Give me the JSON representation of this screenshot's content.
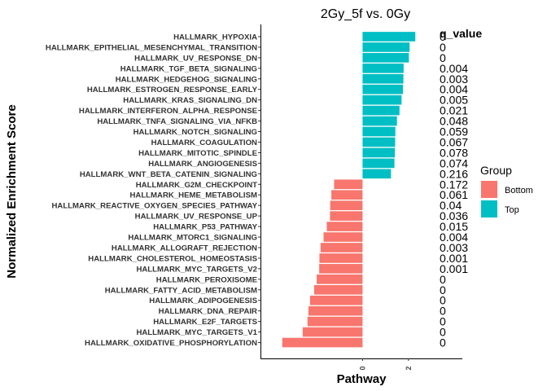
{
  "chart_data": {
    "type": "bar",
    "orientation": "horizontal",
    "title": "2Gy_5f vs. 0Gy",
    "xlabel": "Pathway",
    "ylabel": "Normalized Enrichment Score",
    "xlim": [
      -4.45,
      4.35
    ],
    "x_ticks": [
      0,
      2
    ],
    "x_tick_rotation": -90,
    "grid": false,
    "q_value_header": "q_value",
    "legend": {
      "title": "Group",
      "position": "right",
      "entries": [
        {
          "label": "Bottom",
          "color": "#F8766D"
        },
        {
          "label": "Top",
          "color": "#00BFC4"
        }
      ]
    },
    "colors": {
      "Top": "#00BFC4",
      "Bottom": "#F8766D"
    },
    "categories": [
      "HALLMARK_HYPOXIA",
      "HALLMARK_EPITHELIAL_MESENCHYMAL_TRANSITION",
      "HALLMARK_UV_RESPONSE_DN",
      "HALLMARK_TGF_BETA_SIGNALING",
      "HALLMARK_HEDGEHOG_SIGNALING",
      "HALLMARK_ESTROGEN_RESPONSE_EARLY",
      "HALLMARK_KRAS_SIGNALING_DN",
      "HALLMARK_INTERFERON_ALPHA_RESPONSE",
      "HALLMARK_TNFA_SIGNALING_VIA_NFKB",
      "HALLMARK_NOTCH_SIGNALING",
      "HALLMARK_COAGULATION",
      "HALLMARK_MITOTIC_SPINDLE",
      "HALLMARK_ANGIOGENESIS",
      "HALLMARK_WNT_BETA_CATENIN_SIGNALING",
      "HALLMARK_G2M_CHECKPOINT",
      "HALLMARK_HEME_METABOLISM",
      "HALLMARK_REACTIVE_OXYGEN_SPECIES_PATHWAY",
      "HALLMARK_UV_RESPONSE_UP",
      "HALLMARK_P53_PATHWAY",
      "HALLMARK_MTORC1_SIGNALING",
      "HALLMARK_ALLOGRAFT_REJECTION",
      "HALLMARK_CHOLESTEROL_HOMEOSTASIS",
      "HALLMARK_MYC_TARGETS_V2",
      "HALLMARK_PEROXISOME",
      "HALLMARK_FATTY_ACID_METABOLISM",
      "HALLMARK_ADIPOGENESIS",
      "HALLMARK_DNA_REPAIR",
      "HALLMARK_E2F_TARGETS",
      "HALLMARK_MYC_TARGETS_V1",
      "HALLMARK_OXIDATIVE_PHOSPHORYLATION"
    ],
    "values": [
      2.3,
      2.05,
      2.02,
      1.79,
      1.78,
      1.76,
      1.7,
      1.61,
      1.5,
      1.43,
      1.42,
      1.41,
      1.39,
      1.24,
      -1.24,
      -1.36,
      -1.41,
      -1.42,
      -1.56,
      -1.7,
      -1.83,
      -1.88,
      -1.89,
      -2.0,
      -2.11,
      -2.29,
      -2.36,
      -2.4,
      -2.61,
      -3.5
    ],
    "groups": [
      "Top",
      "Top",
      "Top",
      "Top",
      "Top",
      "Top",
      "Top",
      "Top",
      "Top",
      "Top",
      "Top",
      "Top",
      "Top",
      "Top",
      "Bottom",
      "Bottom",
      "Bottom",
      "Bottom",
      "Bottom",
      "Bottom",
      "Bottom",
      "Bottom",
      "Bottom",
      "Bottom",
      "Bottom",
      "Bottom",
      "Bottom",
      "Bottom",
      "Bottom",
      "Bottom"
    ],
    "q_values": [
      "0",
      "0",
      "0",
      "0.004",
      "0.003",
      "0.004",
      "0.005",
      "0.021",
      "0.048",
      "0.059",
      "0.067",
      "0.078",
      "0.074",
      "0.216",
      "0.172",
      "0.061",
      "0.04",
      "0.036",
      "0.015",
      "0.004",
      "0.003",
      "0.001",
      "0.001",
      "0",
      "0",
      "0",
      "0",
      "0",
      "0",
      "0"
    ]
  }
}
